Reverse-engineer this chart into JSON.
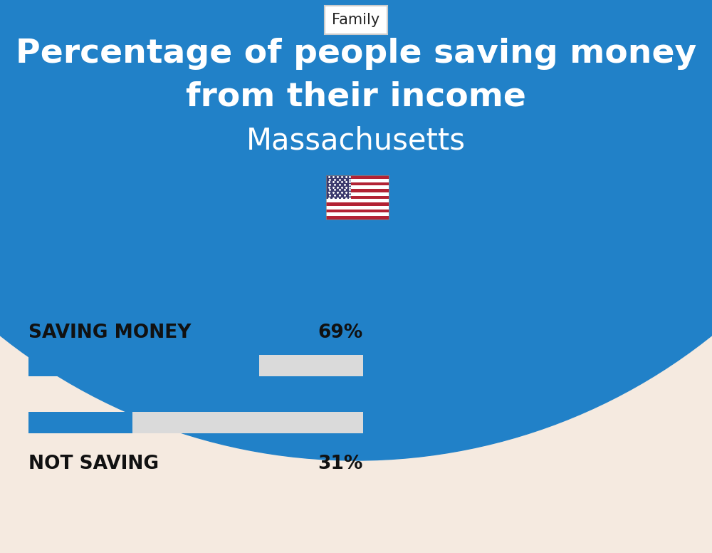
{
  "title_line1": "Percentage of people saving money",
  "title_line2": "from their income",
  "subtitle": "Massachusetts",
  "category_label": "Family",
  "bg_top_color": "#2181C8",
  "bg_bottom_color": "#F5EAE0",
  "bar_color": "#2181C8",
  "bar_bg_color": "#DADADA",
  "categories": [
    "SAVING MONEY",
    "NOT SAVING"
  ],
  "values": [
    69,
    31
  ],
  "title_fontsize": 34,
  "subtitle_fontsize": 30,
  "label_fontsize": 19,
  "value_fontsize": 19,
  "family_fontsize": 15
}
